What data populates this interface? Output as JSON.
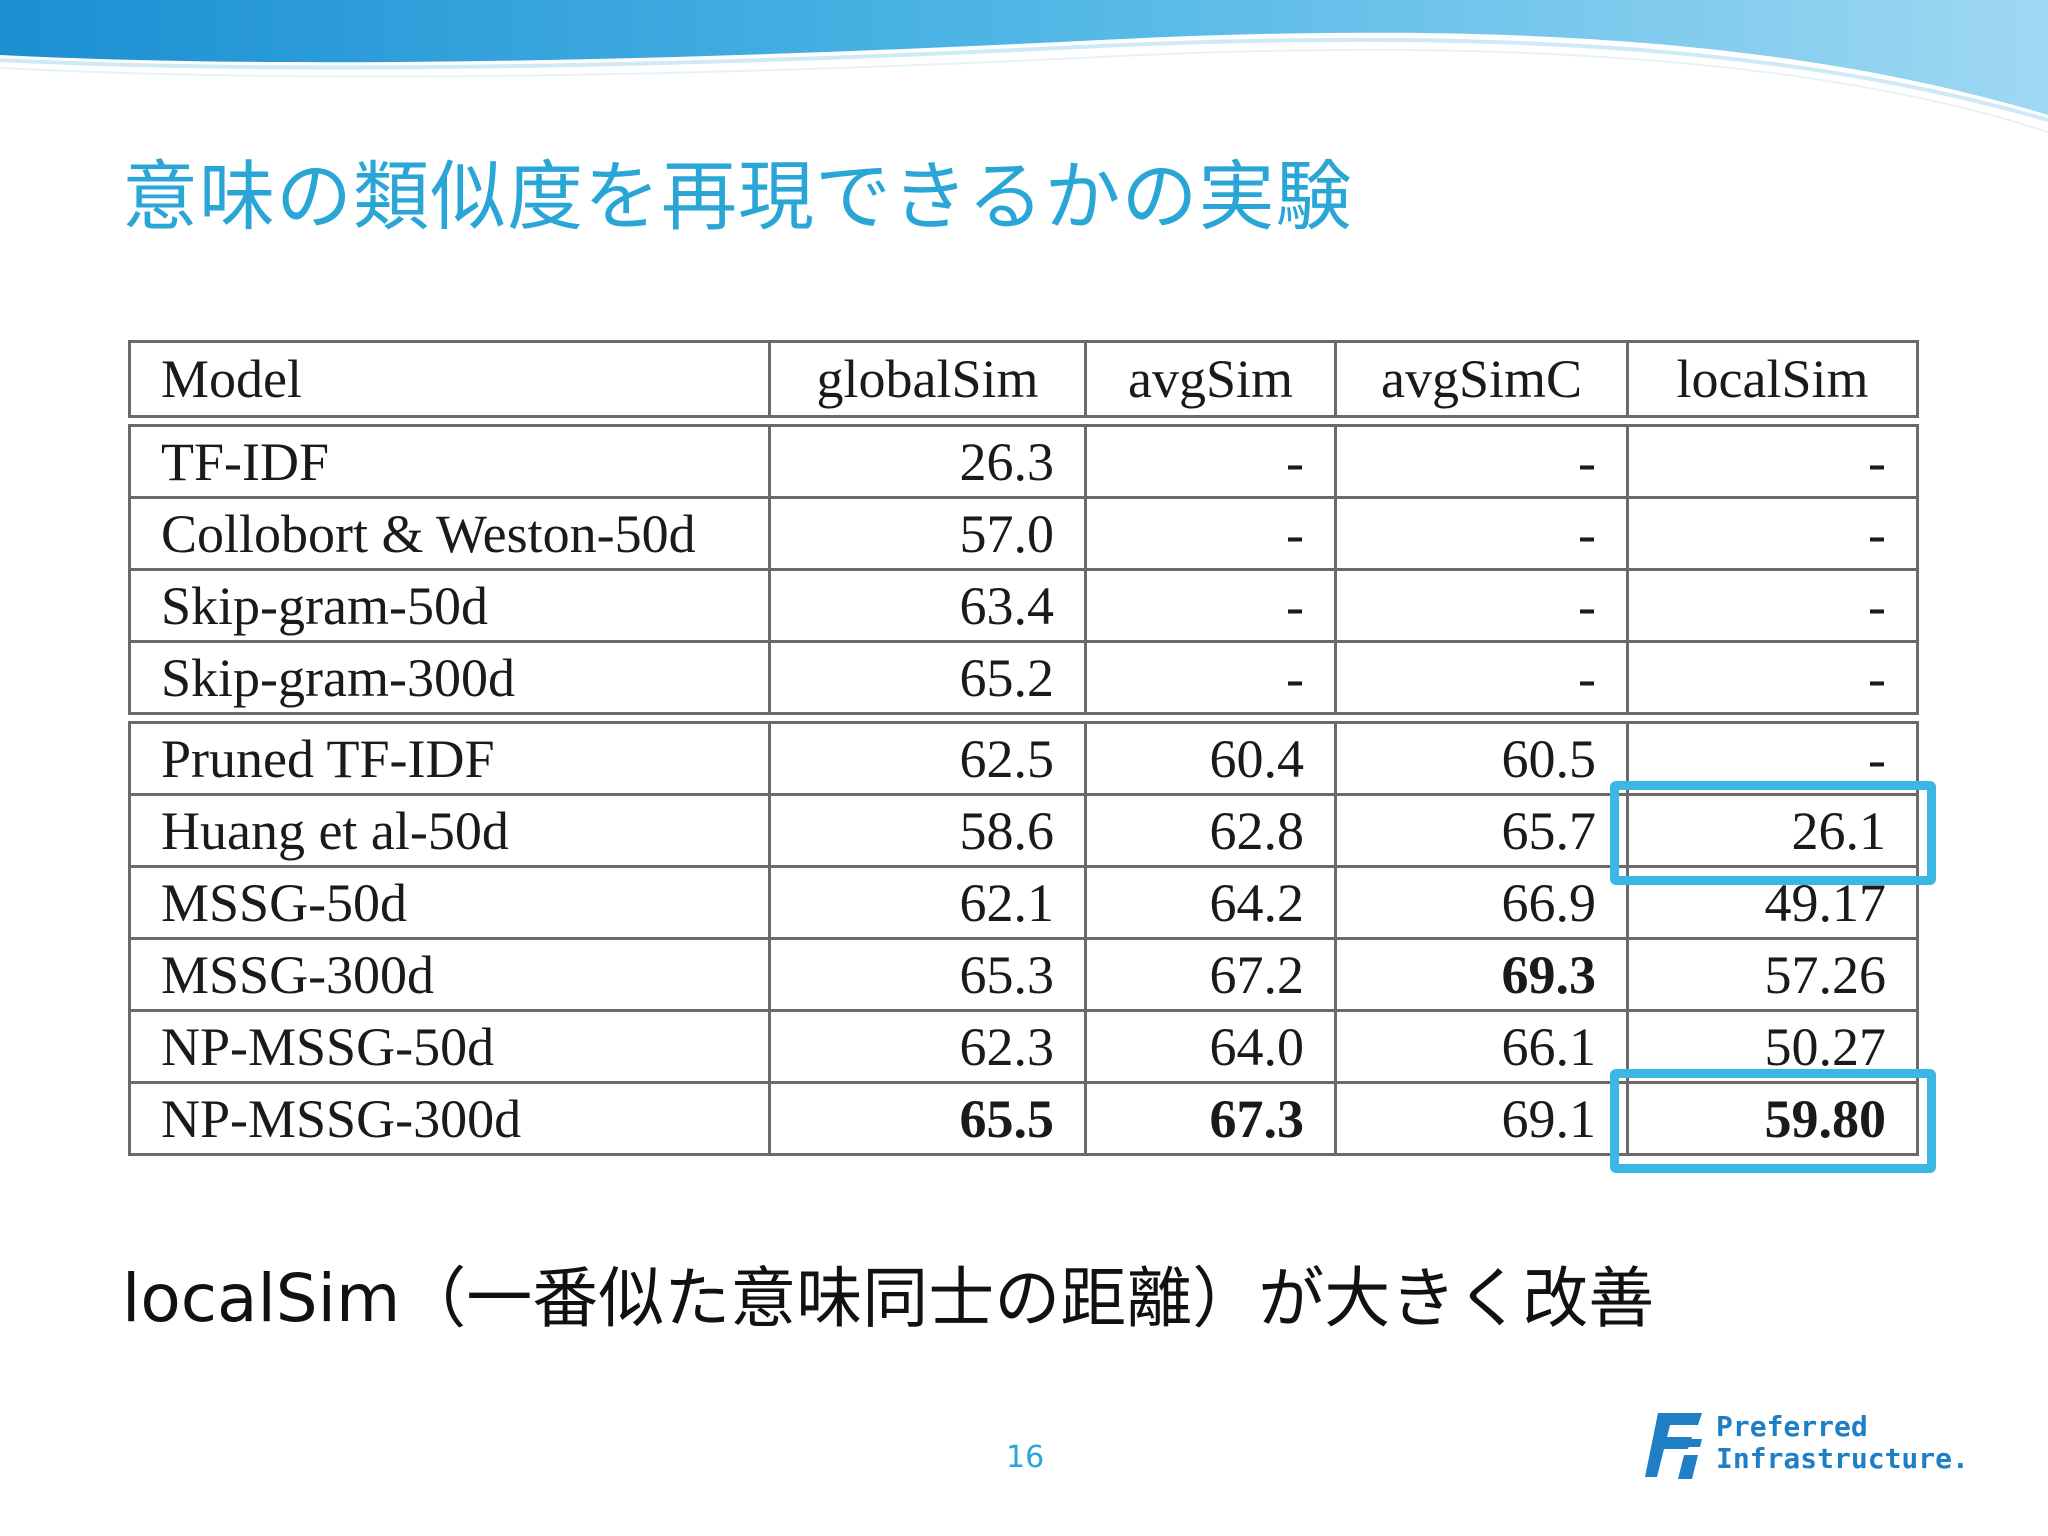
{
  "slide": {
    "title": "意味の類似度を再現できるかの実験",
    "caption": "localSim（一番似た意味同士の距離）が大きく改善",
    "page_number": "16"
  },
  "logo": {
    "line1": "Preferred",
    "line2": "Infrastructure."
  },
  "colors": {
    "accent": "#2aa6d6",
    "highlight": "#3bb7e6",
    "logo": "#1f7fc4"
  },
  "table": {
    "headers": [
      "Model",
      "globalSim",
      "avgSim",
      "avgSimC",
      "localSim"
    ],
    "group1": [
      [
        "TF-IDF",
        "26.3",
        "-",
        "-",
        "-"
      ],
      [
        "Collobort & Weston-50d",
        "57.0",
        "-",
        "-",
        "-"
      ],
      [
        "Skip-gram-50d",
        "63.4",
        "-",
        "-",
        "-"
      ],
      [
        "Skip-gram-300d",
        "65.2",
        "-",
        "-",
        "-"
      ]
    ],
    "group2": [
      [
        "Pruned TF-IDF",
        "62.5",
        "60.4",
        "60.5",
        "-"
      ],
      [
        "Huang et al-50d",
        "58.6",
        "62.8",
        "65.7",
        "26.1"
      ],
      [
        "MSSG-50d",
        "62.1",
        "64.2",
        "66.9",
        "49.17"
      ],
      [
        "MSSG-300d",
        "65.3",
        "67.2",
        "69.3",
        "57.26"
      ],
      [
        "NP-MSSG-50d",
        "62.3",
        "64.0",
        "66.1",
        "50.27"
      ],
      [
        "NP-MSSG-300d",
        "65.5",
        "67.3",
        "69.1",
        "59.80"
      ]
    ],
    "bold_cells": [
      "group2.3.3",
      "group2.5.1",
      "group2.5.2",
      "group2.5.4"
    ],
    "highlighted_cells": [
      "group2.1.4",
      "group2.5.4"
    ]
  }
}
